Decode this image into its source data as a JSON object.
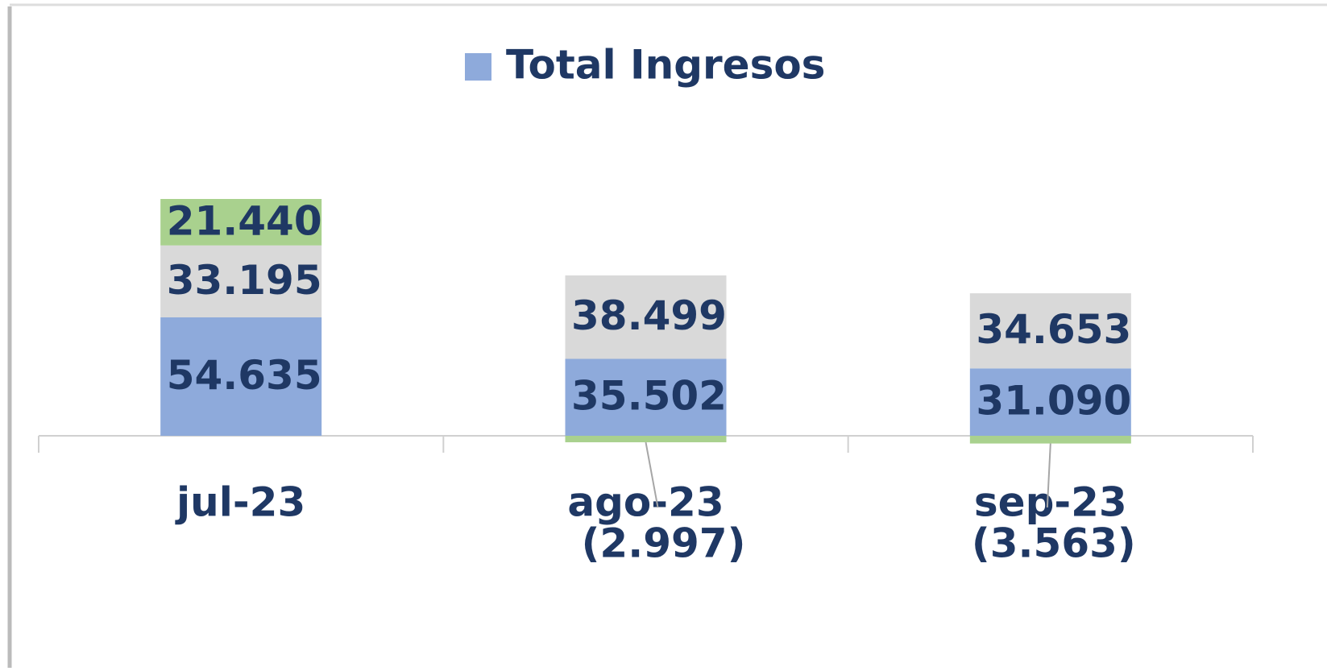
{
  "chart_data": {
    "type": "stacked_bar",
    "categories": [
      "jul-23",
      "ago-23",
      "sep-23"
    ],
    "series": [
      {
        "name": "Total Ingresos",
        "color": "#8eaadb",
        "values": [
          54635,
          35502,
          31090
        ],
        "value_labels": [
          "54.635",
          "35.502",
          "31.090"
        ]
      },
      {
        "color": "#d9d9d9",
        "values": [
          33195,
          38499,
          34653
        ],
        "value_labels": [
          "33.195",
          "38.499",
          "34.653"
        ]
      },
      {
        "color": "#a9d18e",
        "values": [
          21440,
          -2997,
          -3563
        ],
        "value_labels": [
          "21.440",
          "(2.997)",
          "(3.563)"
        ]
      }
    ]
  }
}
